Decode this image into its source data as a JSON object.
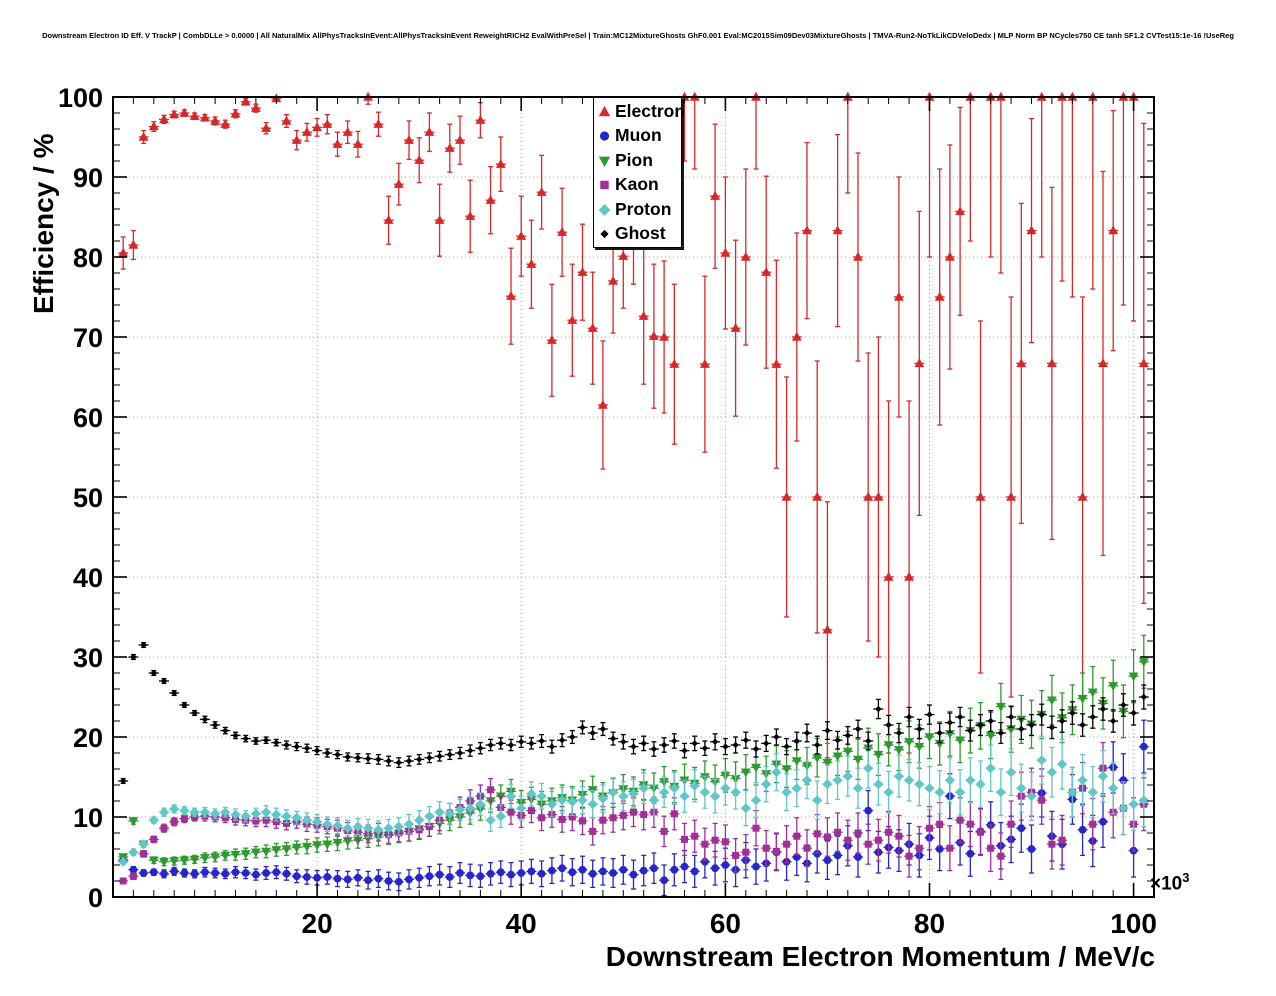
{
  "header": {
    "title": "Downstream Electron ID Eff. V TrackP | CombDLLe > 0.0000 | All NaturalMix AllPhysTracksInEvent:AllPhysTracksInEvent ReweightRICH2 EvalWithPreSel | Train:MC12MixtureGhosts GhF0.001 Eval:MC2015Sim09Dev03MixtureGhosts | TMVA-Run2-NoTkLikCDVeloDedx | MLP Norm BP NCycles750 CE tanh SF1.2 CVTest15:1e-16 !UseReg"
  },
  "axes": {
    "y_label": "Efficiency / %",
    "x_label": "Downstream Electron Momentum / MeV/c",
    "x_exponent": "×10",
    "x_exponent_sup": "3",
    "x_ticks": [
      20,
      40,
      60,
      80,
      100
    ],
    "y_ticks": [
      0,
      10,
      20,
      30,
      40,
      50,
      60,
      70,
      80,
      90,
      100
    ]
  },
  "chart_data": {
    "type": "scatter",
    "title": "Downstream Electron ID Eff. V TrackP | CombDLLe > 0.0000",
    "xlabel": "Downstream Electron Momentum / MeV/c",
    "ylabel": "Efficiency / %",
    "x_unit_note": "x values in units of 10^3 MeV/c",
    "xlim": [
      0,
      102
    ],
    "ylim": [
      0,
      100
    ],
    "xticks": [
      20,
      40,
      60,
      80,
      100
    ],
    "yticks": [
      0,
      10,
      20,
      30,
      40,
      50,
      60,
      70,
      80,
      90,
      100
    ],
    "x_minor_step": 2,
    "y_minor_step": 2,
    "grid": true,
    "legend_position": "top-center",
    "x": [
      1,
      2,
      3,
      4,
      5,
      6,
      7,
      8,
      9,
      10,
      11,
      12,
      13,
      14,
      15,
      16,
      17,
      18,
      19,
      20,
      21,
      22,
      23,
      24,
      25,
      26,
      27,
      28,
      29,
      30,
      31,
      32,
      33,
      34,
      35,
      36,
      37,
      38,
      39,
      40,
      41,
      42,
      43,
      44,
      45,
      46,
      47,
      48,
      49,
      50,
      51,
      52,
      53,
      54,
      55,
      56,
      57,
      58,
      59,
      60,
      61,
      62,
      63,
      64,
      65,
      66,
      67,
      68,
      69,
      70,
      71,
      72,
      73,
      74,
      75,
      76,
      77,
      78,
      79,
      80,
      81,
      82,
      83,
      84,
      85,
      86,
      87,
      88,
      89,
      90,
      91,
      92,
      93,
      94,
      95,
      96,
      97,
      98,
      99,
      100,
      101
    ],
    "default_ey": [
      0.3,
      0.4,
      0.4,
      0.4,
      0.5,
      0.5,
      0.5,
      0.5,
      0.6,
      0.6,
      0.6,
      0.7,
      0.7,
      0.7,
      0.8,
      0.8,
      0.8,
      0.8,
      0.9,
      0.9,
      0.9,
      1.0,
      1.0,
      1.0,
      1.1,
      1.1,
      1.1,
      1.1,
      1.2,
      1.2,
      1.2,
      1.3,
      1.3,
      1.3,
      1.4,
      1.4,
      1.4,
      1.4,
      1.5,
      1.5,
      1.5,
      1.6,
      1.6,
      1.6,
      1.7,
      1.7,
      1.7,
      1.7,
      1.8,
      1.8,
      1.8,
      1.9,
      1.9,
      1.9,
      2.0,
      2.0,
      2.0,
      2.0,
      2.1,
      2.1,
      2.1,
      2.2,
      2.2,
      2.2,
      2.3,
      2.3,
      2.3,
      2.3,
      2.4,
      2.4,
      2.4,
      2.5,
      2.5,
      2.5,
      2.6,
      2.6,
      2.6,
      2.6,
      2.7,
      2.7,
      2.7,
      2.8,
      2.8,
      2.8,
      2.9,
      2.9,
      2.9,
      2.9,
      3.0,
      3.0,
      3.0,
      3.1,
      3.1,
      3.1,
      3.2,
      3.2,
      3.2,
      3.2,
      3.3,
      3.3,
      3.3
    ],
    "series": [
      {
        "name": "Electron",
        "color": "#d62828",
        "marker": "triangle-up",
        "msize": 5.2,
        "y": [
          80.5,
          81.5,
          95.0,
          96.3,
          97.2,
          97.8,
          98.0,
          97.6,
          97.4,
          97.0,
          96.6,
          97.9,
          99.4,
          98.6,
          96.1,
          99.8,
          97.0,
          94.6,
          95.6,
          96.2,
          96.6,
          94.1,
          95.6,
          94.1,
          100.0,
          96.6,
          84.6,
          89.1,
          94.6,
          92.1,
          95.6,
          84.6,
          93.6,
          94.6,
          85.1,
          97.1,
          87.1,
          91.6,
          75.1,
          82.6,
          79.1,
          88.1,
          69.6,
          83.1,
          72.1,
          78.1,
          71.1,
          61.5,
          77.0,
          80.1,
          83.4,
          72.6,
          70.1,
          70.0,
          66.6,
          100.0,
          100.0,
          66.6,
          87.6,
          80.5,
          71.1,
          80.0,
          100.0,
          78.1,
          66.6,
          50.0,
          70.0,
          83.3,
          50.0,
          33.4,
          83.3,
          100.0,
          80.0,
          50.0,
          50.0,
          40.0,
          75.0,
          40.0,
          66.7,
          100.0,
          75.0,
          80.0,
          85.7,
          100.0,
          50.0,
          100.0,
          100.0,
          50.0,
          66.7,
          83.3,
          100.0,
          66.7,
          100.0,
          100.0,
          50.0,
          100.0,
          66.7,
          83.3,
          100.0,
          100.0,
          66.7
        ],
        "ey": [
          2.0,
          1.8,
          0.8,
          0.6,
          0.5,
          0.4,
          0.4,
          0.4,
          0.4,
          0.5,
          0.5,
          0.5,
          0.4,
          0.5,
          0.7,
          0.3,
          0.8,
          1.2,
          1.1,
          1.1,
          1.2,
          1.5,
          1.4,
          1.6,
          0.9,
          1.5,
          3.0,
          2.6,
          2.4,
          2.8,
          2.4,
          4.5,
          3.0,
          3.0,
          4.5,
          2.2,
          4.2,
          3.4,
          6.0,
          5.0,
          5.5,
          4.6,
          7.0,
          5.5,
          7.0,
          6.0,
          7.0,
          8.0,
          6.5,
          6.5,
          6.8,
          8.5,
          9.0,
          9.5,
          10.0,
          8.0,
          9.0,
          11.0,
          9.0,
          9.5,
          11.0,
          11.0,
          9.0,
          12.0,
          13.0,
          15.0,
          13.0,
          11.0,
          17.0,
          16.0,
          12.0,
          12.0,
          13.0,
          18.0,
          20.0,
          22.0,
          15.0,
          22.0,
          19.0,
          20.0,
          16.0,
          14.0,
          13.0,
          18.0,
          22.0,
          20.0,
          22.0,
          25.0,
          20.0,
          14.0,
          20.0,
          22.0,
          23.0,
          25.0,
          25.0,
          24.0,
          24.0,
          15.0,
          26.0,
          28.0,
          30.0
        ]
      },
      {
        "name": "Muon",
        "color": "#2626cc",
        "marker": "circle",
        "msize": 4.6,
        "y": [
          4.6,
          3.4,
          3.0,
          3.1,
          2.9,
          3.2,
          3.0,
          2.9,
          3.1,
          3.0,
          2.9,
          3.1,
          3.0,
          2.8,
          3.0,
          3.1,
          2.9,
          2.6,
          2.5,
          2.4,
          2.5,
          2.3,
          2.2,
          2.4,
          2.1,
          2.3,
          2.0,
          1.9,
          2.2,
          2.4,
          2.6,
          2.8,
          2.5,
          3.0,
          2.7,
          2.6,
          2.9,
          3.1,
          2.8,
          3.0,
          3.2,
          2.9,
          3.3,
          3.6,
          3.1,
          3.4,
          2.9,
          3.2,
          3.0,
          3.4,
          2.8,
          3.3,
          3.6,
          2.1,
          3.4,
          3.8,
          3.2,
          4.4,
          3.6,
          4.0,
          3.4,
          4.6,
          3.8,
          4.2,
          5.6,
          4.4,
          5.0,
          4.2,
          5.4,
          4.6,
          5.2,
          6.4,
          5.0,
          10.8,
          5.6,
          6.2,
          5.8,
          6.6,
          5.2,
          7.4,
          6.0,
          12.6,
          6.8,
          5.4,
          8.2,
          9.0,
          6.4,
          7.2,
          8.6,
          6.0,
          13.0,
          7.6,
          6.6,
          12.2,
          8.4,
          7.0,
          9.4,
          16.2,
          14.6,
          5.8,
          18.8
        ]
      },
      {
        "name": "Pion",
        "color": "#2e992e",
        "marker": "triangle-down",
        "msize": 5.2,
        "y": [
          5.0,
          9.5,
          6.6,
          4.6,
          4.4,
          4.5,
          4.6,
          4.7,
          4.9,
          5.0,
          5.2,
          5.3,
          5.4,
          5.6,
          5.7,
          5.9,
          6.0,
          6.2,
          6.3,
          6.5,
          6.6,
          6.8,
          7.0,
          7.1,
          7.3,
          7.5,
          7.7,
          7.9,
          8.2,
          8.5,
          8.8,
          9.2,
          9.6,
          10.0,
          10.5,
          11.0,
          12.0,
          12.6,
          13.2,
          11.8,
          12.2,
          11.6,
          12.0,
          12.4,
          12.1,
          12.8,
          13.4,
          12.6,
          13.0,
          13.5,
          13.2,
          14.0,
          13.6,
          14.4,
          13.8,
          14.6,
          14.2,
          15.0,
          14.4,
          15.2,
          14.8,
          15.6,
          16.2,
          15.4,
          16.6,
          16.0,
          17.0,
          16.4,
          17.4,
          16.8,
          17.6,
          18.2,
          17.2,
          18.6,
          17.8,
          19.0,
          18.4,
          19.4,
          18.8,
          20.0,
          19.2,
          20.4,
          19.6,
          20.8,
          21.4,
          20.2,
          23.8,
          21.0,
          22.2,
          21.6,
          22.8,
          24.6,
          22.4,
          23.4,
          24.8,
          25.6,
          24.2,
          26.4,
          23.2,
          27.6,
          29.4
        ]
      },
      {
        "name": "Kaon",
        "color": "#a02f96",
        "marker": "square",
        "msize": 4.4,
        "y": [
          2.0,
          2.6,
          5.4,
          7.2,
          8.6,
          9.4,
          9.8,
          10.0,
          10.1,
          10.0,
          9.9,
          9.7,
          9.6,
          9.5,
          9.6,
          9.4,
          9.2,
          9.4,
          9.1,
          9.0,
          8.8,
          8.6,
          8.3,
          8.1,
          7.9,
          8.1,
          7.8,
          8.0,
          8.2,
          8.4,
          8.8,
          9.6,
          10.4,
          11.2,
          12.0,
          12.6,
          13.4,
          11.2,
          10.6,
          10.2,
          10.8,
          9.9,
          10.3,
          9.7,
          10.0,
          9.5,
          8.2,
          9.6,
          9.9,
          10.2,
          10.6,
          10.3,
          10.6,
          8.2,
          10.4,
          7.2,
          7.6,
          6.6,
          7.1,
          6.9,
          5.2,
          5.6,
          8.6,
          6.1,
          5.7,
          6.6,
          7.6,
          6.1,
          7.9,
          7.5,
          8.1,
          7.1,
          8.0,
          6.6,
          7.1,
          8.1,
          7.6,
          5.1,
          6.1,
          8.6,
          9.1,
          6.1,
          9.6,
          9.1,
          8.1,
          6.1,
          5.1,
          9.1,
          12.6,
          13.1,
          12.1,
          6.6,
          7.1,
          13.1,
          13.6,
          9.1,
          16.1,
          10.6,
          11.1,
          9.1,
          11.6
        ]
      },
      {
        "name": "Proton",
        "color": "#60c6c6",
        "marker": "diamond",
        "msize": 5.0,
        "y": [
          4.4,
          5.6,
          6.6,
          9.6,
          10.6,
          11.0,
          10.8,
          10.6,
          10.6,
          10.4,
          10.6,
          10.3,
          10.1,
          10.4,
          10.6,
          10.3,
          10.1,
          9.9,
          9.6,
          9.4,
          9.1,
          8.9,
          8.6,
          8.8,
          8.6,
          8.4,
          8.6,
          8.8,
          9.1,
          9.6,
          10.1,
          10.6,
          10.4,
          10.9,
          11.1,
          11.6,
          9.6,
          10.1,
          12.6,
          11.1,
          12.9,
          12.6,
          11.6,
          12.1,
          11.9,
          12.1,
          11.6,
          12.3,
          13.1,
          12.6,
          12.9,
          13.6,
          12.1,
          13.1,
          13.6,
          12.6,
          13.9,
          13.1,
          12.6,
          13.6,
          13.1,
          11.1,
          12.1,
          14.1,
          15.6,
          13.1,
          13.6,
          14.6,
          12.1,
          14.1,
          14.6,
          15.1,
          13.6,
          16.1,
          14.1,
          13.1,
          15.1,
          14.6,
          14.1,
          13.6,
          13.1,
          14.6,
          13.1,
          14.6,
          14.1,
          16.1,
          13.1,
          15.6,
          13.6,
          12.6,
          17.1,
          15.6,
          16.6,
          13.1,
          14.6,
          13.1,
          15.1,
          13.6,
          11.1,
          11.6,
          12.1
        ]
      },
      {
        "name": "Ghost",
        "color": "#000000",
        "marker": "diamond",
        "msize": 3.2,
        "y": [
          14.5,
          30.0,
          31.5,
          28.0,
          27.0,
          25.5,
          24.0,
          23.0,
          22.2,
          21.5,
          20.8,
          20.2,
          19.8,
          19.5,
          19.6,
          19.3,
          19.0,
          18.8,
          18.6,
          18.3,
          18.0,
          17.8,
          17.5,
          17.4,
          17.3,
          17.2,
          17.0,
          16.8,
          17.0,
          17.2,
          17.4,
          17.6,
          17.8,
          18.0,
          18.3,
          18.6,
          19.0,
          19.2,
          19.0,
          19.4,
          19.2,
          19.5,
          18.8,
          19.6,
          20.0,
          21.2,
          20.5,
          21.0,
          19.8,
          19.4,
          18.8,
          19.2,
          18.5,
          19.0,
          19.5,
          18.3,
          19.2,
          18.6,
          19.4,
          18.8,
          19.0,
          19.6,
          18.5,
          19.2,
          20.0,
          18.8,
          19.5,
          20.5,
          19.0,
          20.8,
          19.6,
          20.2,
          21.0,
          19.5,
          23.5,
          21.5,
          20.5,
          22.5,
          21.0,
          22.8,
          20.5,
          21.8,
          22.5,
          20.8,
          21.5,
          22.0,
          20.5,
          22.5,
          21.0,
          21.5,
          22.8,
          21.2,
          22.0,
          23.0,
          21.5,
          22.5,
          23.5,
          22.0,
          24.0,
          23.0,
          25.0
        ],
        "ey": [
          0.3,
          0.3,
          0.3,
          0.3,
          0.3,
          0.3,
          0.3,
          0.3,
          0.4,
          0.4,
          0.4,
          0.4,
          0.4,
          0.4,
          0.4,
          0.4,
          0.5,
          0.5,
          0.5,
          0.5,
          0.5,
          0.5,
          0.5,
          0.5,
          0.6,
          0.6,
          0.6,
          0.6,
          0.6,
          0.6,
          0.6,
          0.6,
          0.6,
          0.7,
          0.7,
          0.7,
          0.7,
          0.7,
          0.7,
          0.7,
          0.7,
          0.8,
          0.8,
          0.8,
          0.8,
          0.8,
          0.8,
          0.8,
          0.8,
          0.9,
          0.9,
          0.9,
          0.9,
          0.9,
          0.9,
          0.9,
          0.9,
          0.9,
          1.0,
          1.0,
          1.0,
          1.0,
          1.0,
          1.0,
          1.0,
          1.0,
          1.1,
          1.1,
          1.1,
          1.1,
          1.1,
          1.1,
          1.1,
          1.1,
          1.2,
          1.2,
          1.2,
          1.2,
          1.2,
          1.2,
          1.2,
          1.2,
          1.2,
          1.3,
          1.3,
          1.3,
          1.3,
          1.3,
          1.3,
          1.3,
          1.3,
          1.4,
          1.4,
          1.4,
          1.4,
          1.4,
          1.4,
          1.4,
          1.4,
          1.5,
          1.5
        ]
      }
    ]
  }
}
